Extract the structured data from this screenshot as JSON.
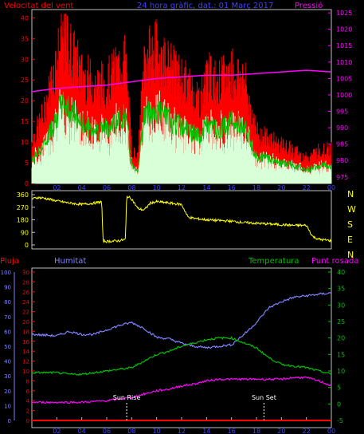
{
  "header": {
    "left_label": "Velocitat del vent",
    "center_label": "24 hora gràfic, dat.: 01 Març 2017",
    "right_label": "Pressió"
  },
  "bottom_labels": {
    "rain": "Pluja",
    "humidity": "Humitat",
    "temperature": "Temperatura",
    "dew_point": "Punt rosada",
    "sunrise": "Sun Rise",
    "sunset": "Sun Set"
  },
  "colors": {
    "wind_gust": "#ff0000",
    "wind_avg": "#00c000",
    "wind_min": "#d8ffd8",
    "pressure": "#ff00ff",
    "direction": "#ffff00",
    "rain": "#ff0000",
    "humidity": "#8080ff",
    "temperature": "#00c000",
    "dew_point": "#ff00ff",
    "axis_left": "#ff0000",
    "axis_right": "#ff00ff",
    "axis_hum": "#8080ff",
    "axis_temp": "#00c000",
    "x_ticks": "#4040ff",
    "compass": "#ffff00"
  },
  "chart_data": [
    {
      "type": "line",
      "x_ticks": [
        "02",
        "04",
        "06",
        "08",
        "10",
        "12",
        "14",
        "16",
        "18",
        "20",
        "22",
        "00"
      ],
      "left_axis": {
        "ticks": [
          0,
          5,
          10,
          15,
          20,
          25,
          30,
          35,
          40
        ],
        "ylim": [
          0,
          42
        ]
      },
      "right_axis": {
        "ticks": [
          975,
          980,
          985,
          990,
          995,
          1000,
          1005,
          1010,
          1015,
          1020,
          1025
        ],
        "ylim": [
          973,
          1026
        ]
      },
      "series": [
        {
          "name": "Velocitat del vent",
          "x": [
            0,
            1,
            2,
            2.5,
            3,
            4,
            5,
            6,
            7,
            7.5,
            8,
            8.5,
            9,
            10,
            11,
            12,
            13,
            13.5,
            14,
            15,
            16,
            17,
            18,
            19,
            20,
            21,
            22,
            23,
            24
          ],
          "values": [
            10,
            17,
            30,
            35,
            33,
            26,
            24,
            24,
            28,
            30,
            8,
            6,
            30,
            32,
            28,
            25,
            22,
            20,
            26,
            24,
            27,
            25,
            12,
            11,
            9,
            8,
            6,
            8,
            8
          ]
        },
        {
          "name": "Pressió",
          "x": [
            0,
            2,
            4,
            6,
            8,
            10,
            12,
            14,
            16,
            18,
            20,
            22,
            24
          ],
          "values": [
            1001,
            1002,
            1002.5,
            1003,
            1004,
            1005,
            1005.5,
            1006,
            1006,
            1006.5,
            1007,
            1007.5,
            1007
          ]
        }
      ]
    },
    {
      "type": "line",
      "x_ticks": [
        "02",
        "04",
        "06",
        "08",
        "10",
        "12",
        "14",
        "16",
        "18",
        "20",
        "22",
        "00"
      ],
      "left_axis": {
        "ticks": [
          0,
          90,
          180,
          270,
          360
        ],
        "ylim": [
          0,
          360
        ]
      },
      "compass_labels": [
        "N",
        "W",
        "S",
        "E",
        "N"
      ],
      "series": [
        {
          "name": "Direcció",
          "x": [
            0,
            0.5,
            1,
            2,
            3,
            4,
            5,
            5.6,
            5.7,
            6,
            7,
            7.5,
            7.6,
            8,
            8.5,
            9,
            9.5,
            10,
            11,
            12,
            12.5,
            13,
            14,
            15,
            16,
            17,
            18,
            19,
            20,
            21,
            22,
            22.5,
            23,
            24
          ],
          "values": [
            330,
            340,
            335,
            315,
            300,
            290,
            300,
            310,
            30,
            25,
            30,
            40,
            350,
            330,
            260,
            250,
            300,
            310,
            300,
            290,
            200,
            190,
            180,
            175,
            170,
            160,
            155,
            150,
            145,
            140,
            140,
            60,
            40,
            30
          ]
        }
      ]
    },
    {
      "type": "line",
      "x_ticks": [
        "02",
        "04",
        "06",
        "08",
        "10",
        "12",
        "14",
        "16",
        "18",
        "20",
        "22",
        "00"
      ],
      "humidity_axis": {
        "ticks": [
          0,
          10,
          20,
          30,
          40,
          50,
          60,
          70,
          80,
          90,
          100
        ],
        "ylim": [
          0,
          100
        ]
      },
      "rain_axis": {
        "ticks": [
          0,
          2,
          4,
          6,
          8,
          10,
          12,
          14,
          16,
          18,
          20,
          22,
          24,
          26,
          28,
          30
        ],
        "ylim": [
          0,
          30
        ]
      },
      "temp_axis": {
        "ticks": [
          -5,
          0,
          5,
          10,
          15,
          20,
          25,
          30,
          35,
          40
        ],
        "ylim": [
          -5,
          40
        ]
      },
      "series": [
        {
          "name": "Humitat",
          "x": [
            0,
            2,
            3,
            4,
            5,
            6,
            7,
            8,
            9,
            10,
            11,
            12,
            13,
            14,
            15,
            16,
            17,
            18,
            19,
            20,
            21,
            22,
            23,
            24
          ],
          "values": [
            58,
            57,
            60,
            58,
            58,
            61,
            64,
            66,
            62,
            56,
            55,
            52,
            50,
            49,
            50,
            51,
            58,
            66,
            76,
            80,
            83,
            84,
            85,
            86
          ]
        },
        {
          "name": "Temperatura",
          "x": [
            0,
            2,
            3,
            4,
            5,
            6,
            7,
            8,
            9,
            10,
            11,
            12,
            13,
            14,
            15,
            16,
            17,
            18,
            19,
            20,
            21,
            22,
            23,
            24
          ],
          "values": [
            9.5,
            9.5,
            9,
            9,
            9.5,
            10,
            10.5,
            11,
            13,
            15,
            16,
            17.5,
            18.5,
            19.5,
            20,
            20,
            18.5,
            17,
            14,
            12,
            11.5,
            11,
            10,
            9
          ]
        },
        {
          "name": "Punt rosada",
          "x": [
            0,
            2,
            4,
            6,
            7,
            8,
            9,
            10,
            11,
            12,
            13,
            14,
            15,
            16,
            17,
            18,
            19,
            20,
            21,
            22,
            23,
            24
          ],
          "values": [
            0.5,
            0.5,
            0.5,
            1,
            1.5,
            2,
            3,
            4,
            4.5,
            5.5,
            6,
            7,
            7.5,
            7.5,
            7.5,
            7.5,
            7.5,
            7.5,
            8,
            8,
            7,
            5.5
          ]
        },
        {
          "name": "Pluja",
          "x": [
            0,
            24
          ],
          "values": [
            0,
            0
          ]
        }
      ]
    }
  ]
}
